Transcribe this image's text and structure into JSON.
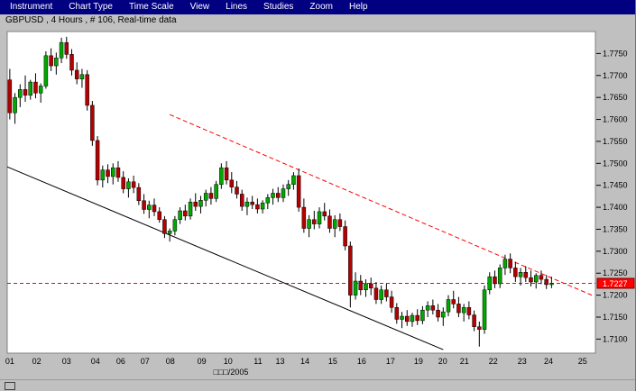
{
  "menubar": {
    "items": [
      "Instrument",
      "Chart Type",
      "Time Scale",
      "View",
      "Lines",
      "Studies",
      "Zoom",
      "Help"
    ]
  },
  "chart_title": "GBPUSD , 4 Hours , # 106, Real-time data",
  "ui_colors": {
    "menubar_bg": "#000080",
    "menubar_text": "#ffffff",
    "window_bg": "#c0c0c0",
    "plot_bg": "#ffffff"
  },
  "chart_data": {
    "type": "candlestick",
    "symbol": "GBPUSD",
    "timeframe": "4 Hours",
    "bar_count": 106,
    "price_top": 1.78,
    "price_bottom": 1.7068,
    "current_price": 1.7227,
    "current_price_label": "1.7227",
    "y_axis_labels": [
      "1.7750",
      "1.7700",
      "1.7650",
      "1.7600",
      "1.7550",
      "1.7500",
      "1.7450",
      "1.7400",
      "1.7350",
      "1.7300",
      "1.7250",
      "1.7200",
      "1.7150",
      "1.7100"
    ],
    "x_axis": {
      "title": "□□□/2005",
      "ticks": [
        {
          "label": "01",
          "bar": 0
        },
        {
          "label": "02",
          "bar": 5.2
        },
        {
          "label": "03",
          "bar": 11
        },
        {
          "label": "04",
          "bar": 16.6
        },
        {
          "label": "06",
          "bar": 21.5
        },
        {
          "label": "07",
          "bar": 26.2
        },
        {
          "label": "08",
          "bar": 31.1
        },
        {
          "label": "09",
          "bar": 37.2
        },
        {
          "label": "10",
          "bar": 42.3
        },
        {
          "label": "11",
          "bar": 48.1
        },
        {
          "label": "13",
          "bar": 52.4
        },
        {
          "label": "14",
          "bar": 57.2
        },
        {
          "label": "15",
          "bar": 62.6
        },
        {
          "label": "16",
          "bar": 68.2
        },
        {
          "label": "17",
          "bar": 73.8
        },
        {
          "label": "19",
          "bar": 79.2
        },
        {
          "label": "20",
          "bar": 83.9
        },
        {
          "label": "21",
          "bar": 88.1
        },
        {
          "label": "22",
          "bar": 93.7
        },
        {
          "label": "23",
          "bar": 99.3
        },
        {
          "label": "24",
          "bar": 104.4
        },
        {
          "label": "25",
          "bar": 111
        }
      ]
    },
    "trendlines": [
      {
        "name": "black-support-trendline",
        "bar1": -0.5,
        "price1": 1.7492,
        "bar2": 84,
        "price2": 1.7076,
        "color": "#000000",
        "dashed": false
      },
      {
        "name": "red-resistance-trendline",
        "bar1": 31,
        "price1": 1.7611,
        "bar2": 113,
        "price2": 1.7199,
        "color": "#ff0000",
        "dashed": true
      }
    ],
    "colors": {
      "up": "#00a800",
      "down": "#b40000",
      "wick": "#000000",
      "hline": "#ff0000",
      "price_box_bg": "#ff0000",
      "price_box_text": "#ffffff"
    },
    "candles": [
      [
        1.769,
        1.7715,
        1.76,
        1.7615
      ],
      [
        1.7615,
        1.766,
        1.759,
        1.765
      ],
      [
        1.765,
        1.768,
        1.7628,
        1.7668
      ],
      [
        1.7668,
        1.77,
        1.764,
        1.7655
      ],
      [
        1.7655,
        1.769,
        1.7645,
        1.7685
      ],
      [
        1.7685,
        1.7705,
        1.7648,
        1.766
      ],
      [
        1.766,
        1.7682,
        1.7638,
        1.7676
      ],
      [
        1.7676,
        1.7755,
        1.767,
        1.7745
      ],
      [
        1.7745,
        1.7762,
        1.771,
        1.7722
      ],
      [
        1.7722,
        1.7752,
        1.7702,
        1.774
      ],
      [
        1.774,
        1.7786,
        1.7728,
        1.7775
      ],
      [
        1.7775,
        1.7788,
        1.7738,
        1.7748
      ],
      [
        1.7748,
        1.776,
        1.77,
        1.7712
      ],
      [
        1.7712,
        1.773,
        1.768,
        1.7692
      ],
      [
        1.7692,
        1.7715,
        1.7672,
        1.7702
      ],
      [
        1.7702,
        1.7712,
        1.762,
        1.7632
      ],
      [
        1.7632,
        1.7642,
        1.754,
        1.7552
      ],
      [
        1.7552,
        1.7562,
        1.745,
        1.7462
      ],
      [
        1.7462,
        1.7495,
        1.7445,
        1.7485
      ],
      [
        1.7485,
        1.7498,
        1.7455,
        1.747
      ],
      [
        1.747,
        1.75,
        1.7452,
        1.749
      ],
      [
        1.749,
        1.7505,
        1.7458,
        1.7468
      ],
      [
        1.7468,
        1.7482,
        1.7432,
        1.7442
      ],
      [
        1.7442,
        1.7466,
        1.7422,
        1.7458
      ],
      [
        1.7458,
        1.7472,
        1.7432,
        1.7445
      ],
      [
        1.7445,
        1.7455,
        1.7405,
        1.7415
      ],
      [
        1.7415,
        1.743,
        1.7385,
        1.7395
      ],
      [
        1.7395,
        1.7415,
        1.7375,
        1.7405
      ],
      [
        1.7405,
        1.742,
        1.738,
        1.739
      ],
      [
        1.739,
        1.74,
        1.7365,
        1.7372
      ],
      [
        1.7372,
        1.738,
        1.733,
        1.734
      ],
      [
        1.734,
        1.7352,
        1.7322,
        1.7346
      ],
      [
        1.7346,
        1.738,
        1.7336,
        1.7372
      ],
      [
        1.7372,
        1.74,
        1.7362,
        1.7392
      ],
      [
        1.7392,
        1.7406,
        1.737,
        1.738
      ],
      [
        1.738,
        1.742,
        1.7372,
        1.7412
      ],
      [
        1.7412,
        1.7432,
        1.7392,
        1.7402
      ],
      [
        1.7402,
        1.7426,
        1.7386,
        1.7416
      ],
      [
        1.7416,
        1.744,
        1.7402,
        1.7432
      ],
      [
        1.7432,
        1.7446,
        1.7406,
        1.742
      ],
      [
        1.742,
        1.746,
        1.7412,
        1.7452
      ],
      [
        1.7452,
        1.75,
        1.7442,
        1.749
      ],
      [
        1.749,
        1.7505,
        1.7452,
        1.7462
      ],
      [
        1.7462,
        1.748,
        1.7432,
        1.7446
      ],
      [
        1.7446,
        1.746,
        1.742,
        1.743
      ],
      [
        1.743,
        1.744,
        1.7392,
        1.7402
      ],
      [
        1.7402,
        1.7422,
        1.7382,
        1.7412
      ],
      [
        1.7412,
        1.7426,
        1.7396,
        1.7406
      ],
      [
        1.7406,
        1.742,
        1.7386,
        1.7396
      ],
      [
        1.7396,
        1.7416,
        1.7386,
        1.741
      ],
      [
        1.741,
        1.743,
        1.7396,
        1.7422
      ],
      [
        1.7422,
        1.7442,
        1.7406,
        1.7432
      ],
      [
        1.7432,
        1.7446,
        1.7412,
        1.7422
      ],
      [
        1.7422,
        1.7452,
        1.7412,
        1.7442
      ],
      [
        1.7442,
        1.7462,
        1.7426,
        1.7452
      ],
      [
        1.7452,
        1.748,
        1.744,
        1.7472
      ],
      [
        1.7472,
        1.7488,
        1.739,
        1.74
      ],
      [
        1.74,
        1.742,
        1.7342,
        1.7352
      ],
      [
        1.7352,
        1.7382,
        1.7332,
        1.7372
      ],
      [
        1.7372,
        1.7392,
        1.735,
        1.7362
      ],
      [
        1.7362,
        1.74,
        1.7352,
        1.739
      ],
      [
        1.739,
        1.741,
        1.737,
        1.738
      ],
      [
        1.738,
        1.7395,
        1.7342,
        1.7352
      ],
      [
        1.7352,
        1.7382,
        1.7332,
        1.7372
      ],
      [
        1.7372,
        1.7386,
        1.7346,
        1.7356
      ],
      [
        1.7356,
        1.737,
        1.7302,
        1.7312
      ],
      [
        1.7312,
        1.7322,
        1.7172,
        1.72
      ],
      [
        1.72,
        1.7252,
        1.719,
        1.7232
      ],
      [
        1.7232,
        1.7246,
        1.72,
        1.7212
      ],
      [
        1.7212,
        1.7236,
        1.7196,
        1.7226
      ],
      [
        1.7226,
        1.724,
        1.72,
        1.7216
      ],
      [
        1.7216,
        1.723,
        1.718,
        1.719
      ],
      [
        1.719,
        1.7222,
        1.718,
        1.7212
      ],
      [
        1.7212,
        1.7226,
        1.7186,
        1.7196
      ],
      [
        1.7196,
        1.721,
        1.716,
        1.7172
      ],
      [
        1.7172,
        1.7182,
        1.7135,
        1.7145
      ],
      [
        1.7145,
        1.7162,
        1.7125,
        1.7152
      ],
      [
        1.7152,
        1.7166,
        1.713,
        1.714
      ],
      [
        1.714,
        1.716,
        1.7128,
        1.7154
      ],
      [
        1.7154,
        1.7168,
        1.7132,
        1.7142
      ],
      [
        1.7142,
        1.7175,
        1.7134,
        1.7166
      ],
      [
        1.7166,
        1.7186,
        1.715,
        1.7176
      ],
      [
        1.7176,
        1.719,
        1.7156,
        1.7166
      ],
      [
        1.7166,
        1.718,
        1.714,
        1.715
      ],
      [
        1.715,
        1.7172,
        1.713,
        1.7162
      ],
      [
        1.7162,
        1.72,
        1.7152,
        1.719
      ],
      [
        1.719,
        1.721,
        1.717,
        1.718
      ],
      [
        1.718,
        1.7196,
        1.715,
        1.716
      ],
      [
        1.716,
        1.718,
        1.714,
        1.7172
      ],
      [
        1.7172,
        1.7186,
        1.7145,
        1.7155
      ],
      [
        1.7155,
        1.7165,
        1.7118,
        1.7128
      ],
      [
        1.7128,
        1.714,
        1.7083,
        1.7122
      ],
      [
        1.7122,
        1.7222,
        1.7112,
        1.7212
      ],
      [
        1.7212,
        1.7252,
        1.7202,
        1.7242
      ],
      [
        1.7242,
        1.7256,
        1.7216,
        1.7226
      ],
      [
        1.7226,
        1.727,
        1.7216,
        1.7262
      ],
      [
        1.7262,
        1.7292,
        1.7246,
        1.7282
      ],
      [
        1.7282,
        1.7295,
        1.725,
        1.7262
      ],
      [
        1.7262,
        1.7276,
        1.723,
        1.7242
      ],
      [
        1.7242,
        1.7262,
        1.7222,
        1.7252
      ],
      [
        1.7252,
        1.7266,
        1.723,
        1.724
      ],
      [
        1.724,
        1.7256,
        1.722,
        1.723
      ],
      [
        1.723,
        1.725,
        1.7215,
        1.7245
      ],
      [
        1.7245,
        1.7256,
        1.7225,
        1.7236
      ],
      [
        1.7236,
        1.7246,
        1.7214,
        1.7224
      ],
      [
        1.7224,
        1.7242,
        1.7216,
        1.7227
      ]
    ]
  }
}
